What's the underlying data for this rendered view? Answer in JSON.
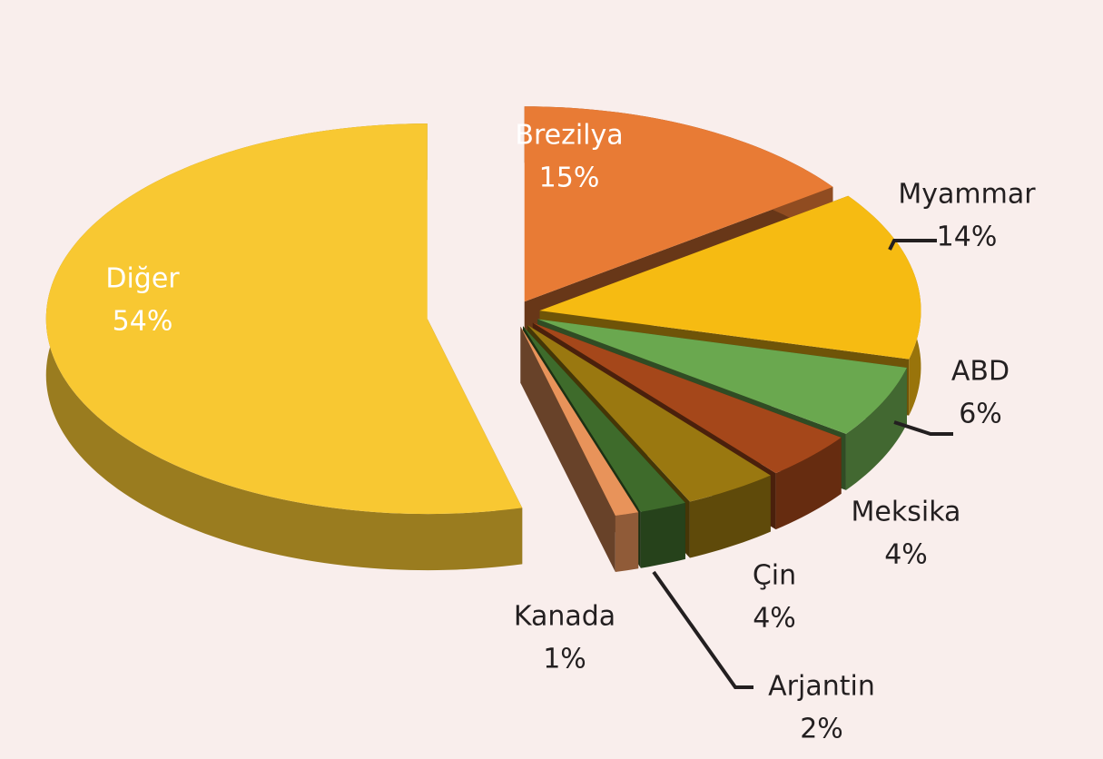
{
  "chart_data": {
    "type": "pie",
    "categories": [
      "Brezilya",
      "Myammar",
      "ABD",
      "Meksika",
      "Çin",
      "Arjantin",
      "Kanada",
      "Diğer"
    ],
    "values": [
      15,
      14,
      6,
      4,
      4,
      2,
      1,
      54
    ],
    "value_labels": [
      "15%",
      "14%",
      "6%",
      "4%",
      "4%",
      "2%",
      "1%",
      "54%"
    ],
    "colors": [
      "#e87b35",
      "#f6bb12",
      "#6aa84f",
      "#a5471a",
      "#9a7810",
      "#3e6b2b",
      "#e8935a",
      "#f8c832"
    ]
  }
}
